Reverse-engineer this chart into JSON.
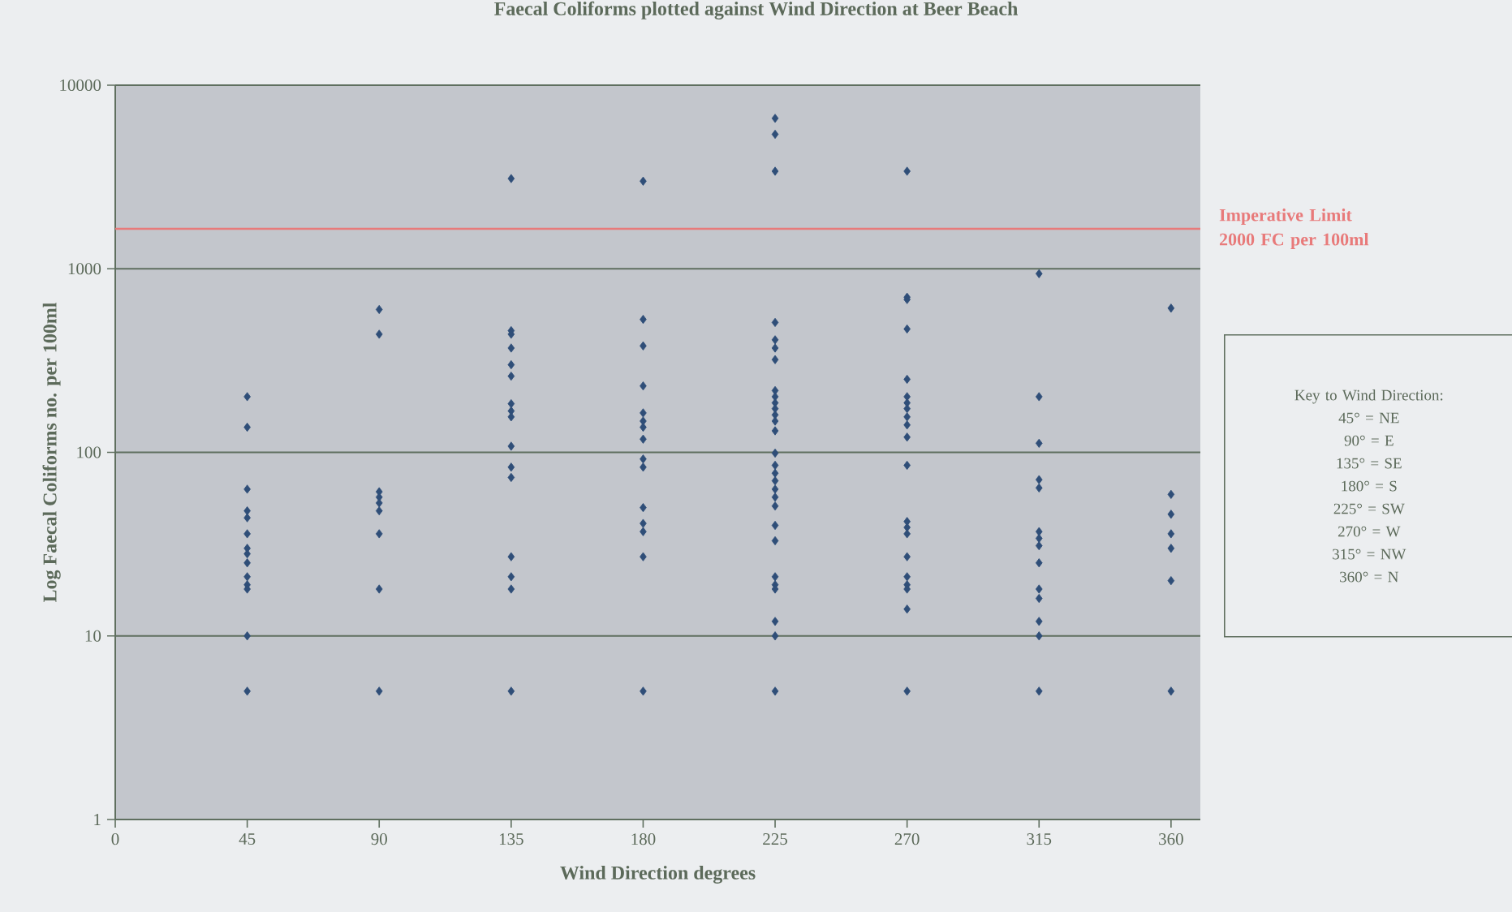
{
  "chart_data": {
    "type": "scatter",
    "title": "Faecal Coliforms plotted against Wind Direction at Beer Beach",
    "xlabel": "Wind Direction degrees",
    "ylabel": "Log Faecal Coliforms no. per 100ml",
    "xlim": [
      0,
      370
    ],
    "xticks": [
      0,
      45,
      90,
      135,
      180,
      225,
      270,
      315,
      360
    ],
    "ylim": [
      1,
      10000
    ],
    "yticks": [
      1,
      10,
      100,
      1000,
      10000
    ],
    "log": "y",
    "grid": "y",
    "marker": "diamond",
    "series": [
      {
        "color": "#2f4e78",
        "x": [
          45,
          45,
          45,
          45,
          45,
          45,
          45,
          45,
          45,
          45,
          45,
          45,
          45,
          45,
          90,
          90,
          90,
          90,
          90,
          90,
          90,
          90,
          90,
          135,
          135,
          135,
          135,
          135,
          135,
          135,
          135,
          135,
          135,
          135,
          135,
          135,
          135,
          135,
          135,
          180,
          180,
          180,
          180,
          180,
          180,
          180,
          180,
          180,
          180,
          180,
          180,
          180,
          180,
          180,
          225,
          225,
          225,
          225,
          225,
          225,
          225,
          225,
          225,
          225,
          225,
          225,
          225,
          225,
          225,
          225,
          225,
          225,
          225,
          225,
          225,
          225,
          225,
          225,
          225,
          225,
          225,
          225,
          225,
          270,
          270,
          270,
          270,
          270,
          270,
          270,
          270,
          270,
          270,
          270,
          270,
          270,
          270,
          270,
          270,
          270,
          270,
          270,
          270,
          270,
          315,
          315,
          315,
          315,
          315,
          315,
          315,
          315,
          315,
          315,
          315,
          315,
          315,
          315,
          360,
          360,
          360,
          360,
          360,
          360,
          360
        ],
        "values": [
          201,
          137,
          63,
          48,
          44,
          36,
          30,
          28,
          25,
          21,
          19,
          18,
          10,
          5,
          600,
          440,
          61,
          57,
          53,
          48,
          36,
          18,
          5,
          3100,
          460,
          440,
          370,
          300,
          260,
          184,
          168,
          156,
          108,
          83,
          73,
          27,
          21,
          18,
          5,
          3000,
          530,
          380,
          230,
          164,
          148,
          137,
          118,
          92,
          83,
          50,
          41,
          37,
          27,
          5,
          6600,
          5400,
          3400,
          510,
          410,
          370,
          320,
          217,
          201,
          186,
          173,
          160,
          148,
          131,
          99,
          85,
          77,
          70,
          63,
          57,
          51,
          40,
          33,
          21,
          19,
          18,
          12,
          10,
          5,
          3400,
          700,
          680,
          470,
          250,
          201,
          186,
          173,
          156,
          141,
          121,
          85,
          42,
          39,
          36,
          27,
          21,
          19,
          18,
          14,
          5,
          940,
          201,
          112,
          71,
          64,
          37,
          34,
          31,
          25,
          18,
          16,
          12,
          10,
          5,
          610,
          59,
          46,
          36,
          30,
          20,
          5
        ]
      }
    ],
    "ref_lines": [
      {
        "axis": "y",
        "value": 1650,
        "label": "Imperative Limit 2000 FC per 100ml",
        "color": "#e87a7a"
      }
    ],
    "annotations": [
      "Key to Wind Direction:",
      "45° = NE",
      "90° = E",
      "135° = SE",
      "180° = S",
      "225° = SW",
      "270° = W",
      "315° = NW",
      "360° = N"
    ]
  }
}
